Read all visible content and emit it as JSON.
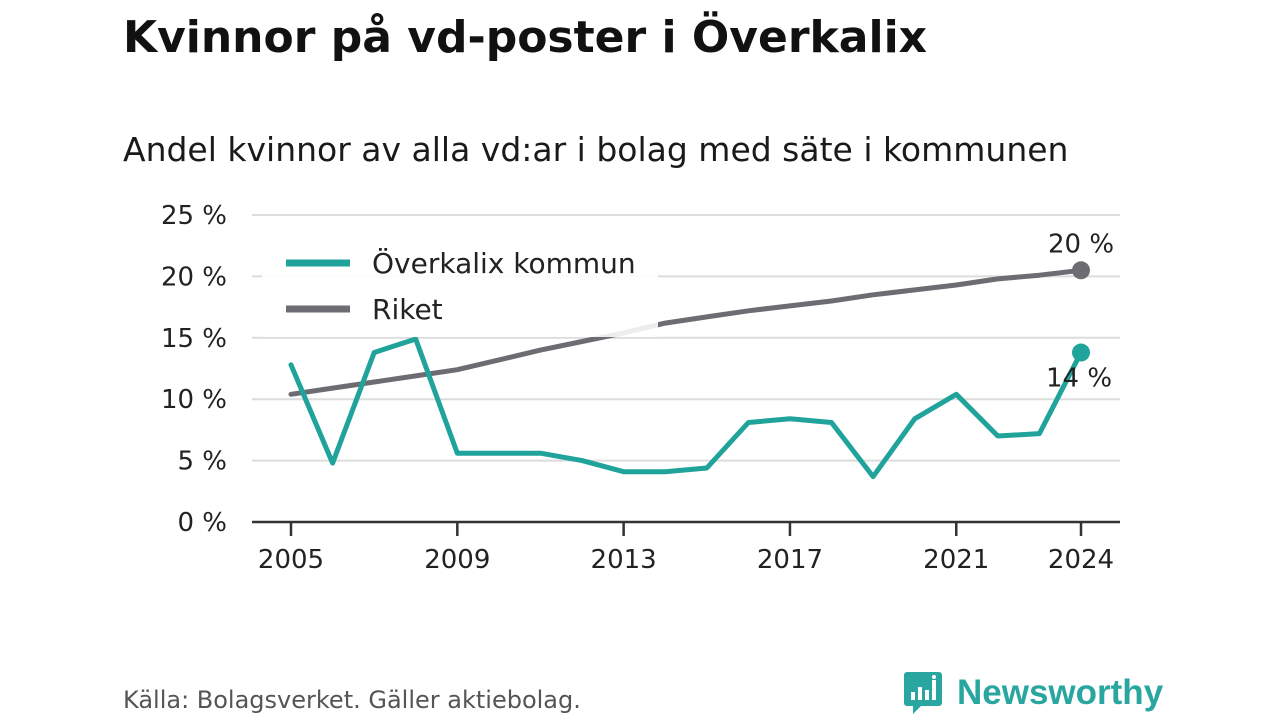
{
  "title": "Kvinnor på vd-poster i Överkalix",
  "subtitle": "Andel kvinnor av alla vd:ar i bolag med säte i kommunen",
  "source": "Källa: Bolagsverket. Gäller aktiebolag.",
  "brand": "Newsworthy",
  "chart_data": {
    "type": "line",
    "x": [
      2005,
      2006,
      2007,
      2008,
      2009,
      2010,
      2011,
      2012,
      2013,
      2014,
      2015,
      2016,
      2017,
      2018,
      2019,
      2020,
      2021,
      2022,
      2023,
      2024
    ],
    "x_ticks": [
      2005,
      2009,
      2013,
      2017,
      2021,
      2024
    ],
    "y_ticks": [
      0,
      5,
      10,
      15,
      20,
      25
    ],
    "y_tick_labels": [
      "0 %",
      "5 %",
      "10 %",
      "15 %",
      "20 %",
      "25 %"
    ],
    "ylim": [
      0,
      25
    ],
    "grid": true,
    "legend_position": "top-left",
    "series": [
      {
        "name": "Överkalix kommun",
        "color": "#1fa39a",
        "values": [
          12.8,
          4.8,
          13.8,
          14.9,
          5.6,
          5.6,
          5.6,
          5.0,
          4.1,
          4.1,
          4.4,
          8.1,
          8.4,
          8.1,
          3.7,
          8.4,
          10.4,
          7.0,
          7.2,
          13.8
        ],
        "end_label": "14 %"
      },
      {
        "name": "Riket",
        "color": "#6d6c72",
        "values": [
          10.4,
          10.9,
          11.4,
          11.9,
          12.4,
          13.2,
          14.0,
          14.7,
          15.4,
          16.2,
          16.7,
          17.2,
          17.6,
          18.0,
          18.5,
          18.9,
          19.3,
          19.8,
          20.1,
          20.5
        ],
        "end_label": "20 %"
      }
    ]
  }
}
